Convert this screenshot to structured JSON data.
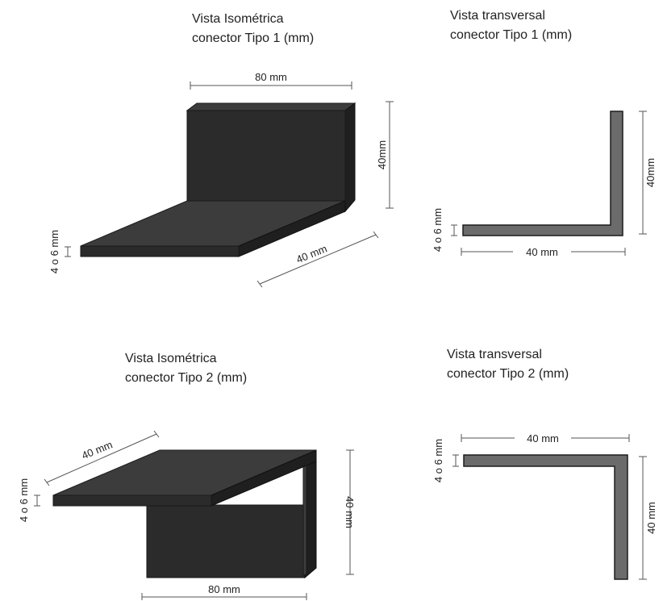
{
  "type1": {
    "iso": {
      "title_line1": "Vista Isométrica",
      "title_line2": "conector Tipo 1 (mm)",
      "dim_width": "80 mm",
      "dim_height": "40mm",
      "dim_depth": "40 mm",
      "dim_thickness": "4 o 6 mm"
    },
    "section": {
      "title_line1": "Vista transversal",
      "title_line2": "conector Tipo 1 (mm)",
      "dim_height": "40mm",
      "dim_width": "40 mm",
      "dim_thickness": "4 o 6 mm"
    }
  },
  "type2": {
    "iso": {
      "title_line1": "Vista Isométrica",
      "title_line2": "conector Tipo 2 (mm)",
      "dim_depth": "40 mm",
      "dim_thickness": "4 o 6 mm",
      "dim_height": "40 mm",
      "dim_width": "80 mm"
    },
    "section": {
      "title_line1": "Vista transversal",
      "title_line2": "conector Tipo 2 (mm)",
      "dim_width": "40 mm",
      "dim_thickness": "4 o 6 mm",
      "dim_height": "40 mm"
    }
  },
  "colors": {
    "solid_dark": "#2b2b2b",
    "section_fill": "#6b6b6b"
  }
}
